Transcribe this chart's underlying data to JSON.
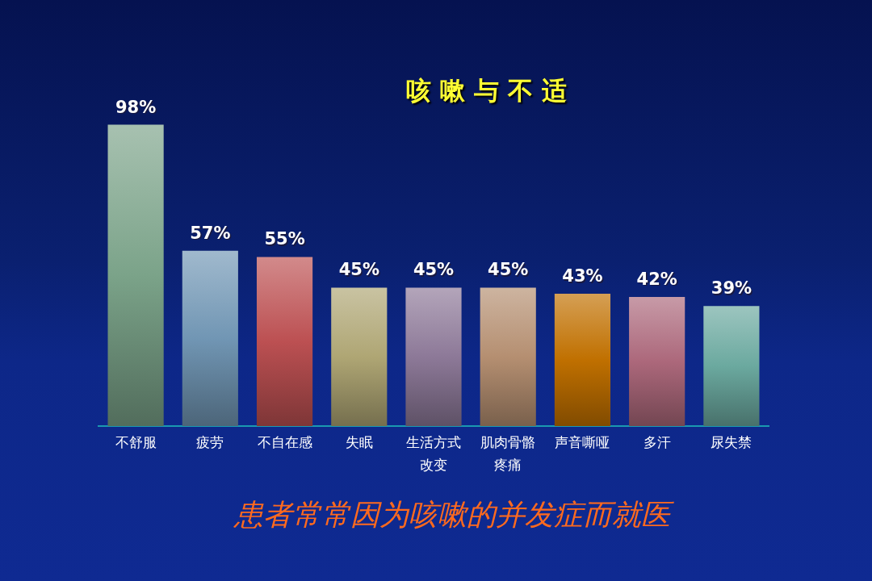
{
  "chart_data": {
    "type": "bar",
    "title": "咳嗽与不适",
    "annotations": [
      "患者常常因为咳嗽的并发症而就医"
    ],
    "categories": [
      "不舒服",
      "疲劳",
      "不自在感",
      "失眠",
      "生活方式改变",
      "肌肉骨骼疼痛",
      "声音嘶哑",
      "多汗",
      "尿失禁"
    ],
    "values": [
      98,
      57,
      55,
      45,
      45,
      45,
      43,
      42,
      39
    ],
    "colors": [
      "#7ba389",
      "#7196b4",
      "#bc5052",
      "#afa674",
      "#8d7998",
      "#b58f71",
      "#c07000",
      "#ac687b",
      "#6ba99f"
    ],
    "value_labels": [
      "98%",
      "57%",
      "55%",
      "45%",
      "45%",
      "45%",
      "43%",
      "42%",
      "39%"
    ],
    "tick_labels": "x"
  }
}
